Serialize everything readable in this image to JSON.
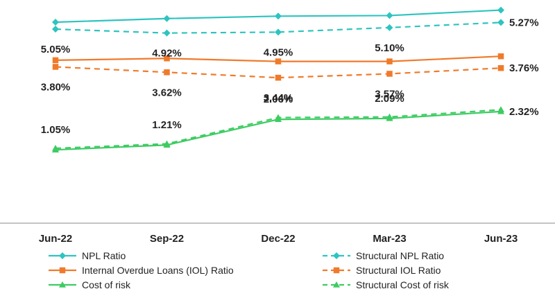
{
  "chart_data": {
    "type": "line",
    "categories": [
      "Jun-22",
      "Sep-22",
      "Dec-22",
      "Mar-23",
      "Jun-23"
    ],
    "series": [
      {
        "name": "NPL Ratio",
        "values": [
          5.28,
          5.4,
          5.48,
          5.5,
          5.68
        ],
        "style": "solid",
        "marker": "diamond",
        "color": "#2EC4C0"
      },
      {
        "name": "Structural NPL Ratio",
        "values": [
          5.05,
          4.92,
          4.95,
          5.1,
          5.27
        ],
        "style": "dashed",
        "marker": "diamond",
        "color": "#2EC4C0"
      },
      {
        "name": "Internal Overdue Loans (IOL) Ratio",
        "values": [
          4.02,
          4.08,
          3.98,
          3.98,
          4.15
        ],
        "style": "solid",
        "marker": "square",
        "color": "#F07A2A"
      },
      {
        "name": "Structural IOL Ratio",
        "values": [
          3.8,
          3.62,
          3.44,
          3.57,
          3.76
        ],
        "style": "dashed",
        "marker": "square",
        "color": "#F07A2A"
      },
      {
        "name": "Cost of risk",
        "values": [
          1.05,
          1.21,
          2.06,
          2.09,
          2.32
        ],
        "style": "solid",
        "marker": "triangle",
        "color": "#3DCC62"
      },
      {
        "name": "Structural Cost of risk",
        "values": [
          1.1,
          1.25,
          2.12,
          2.14,
          2.38
        ],
        "style": "dashed",
        "marker": "triangle",
        "color": "#3DCC62"
      }
    ],
    "data_labels": [
      {
        "series": 1,
        "index": 0,
        "text": "5.05%",
        "pos": "below"
      },
      {
        "series": 1,
        "index": 1,
        "text": "4.92%",
        "pos": "below"
      },
      {
        "series": 1,
        "index": 2,
        "text": "4.95%",
        "pos": "below"
      },
      {
        "series": 1,
        "index": 3,
        "text": "5.10%",
        "pos": "below"
      },
      {
        "series": 1,
        "index": 4,
        "text": "5.27%",
        "pos": "right"
      },
      {
        "series": 3,
        "index": 0,
        "text": "3.80%",
        "pos": "below"
      },
      {
        "series": 3,
        "index": 1,
        "text": "3.62%",
        "pos": "below"
      },
      {
        "series": 3,
        "index": 2,
        "text": "3.44%",
        "pos": "below"
      },
      {
        "series": 3,
        "index": 3,
        "text": "3.57%",
        "pos": "below"
      },
      {
        "series": 3,
        "index": 4,
        "text": "3.76%",
        "pos": "right"
      },
      {
        "series": 4,
        "index": 0,
        "text": "1.05%",
        "pos": "above"
      },
      {
        "series": 4,
        "index": 1,
        "text": "1.21%",
        "pos": "above"
      },
      {
        "series": 4,
        "index": 2,
        "text": "2.06%",
        "pos": "above"
      },
      {
        "series": 4,
        "index": 3,
        "text": "2.09%",
        "pos": "above"
      },
      {
        "series": 4,
        "index": 4,
        "text": "2.32%",
        "pos": "right"
      }
    ],
    "ylim": [
      -0.3,
      5.9
    ],
    "grid": false,
    "legend_position": "bottom"
  }
}
